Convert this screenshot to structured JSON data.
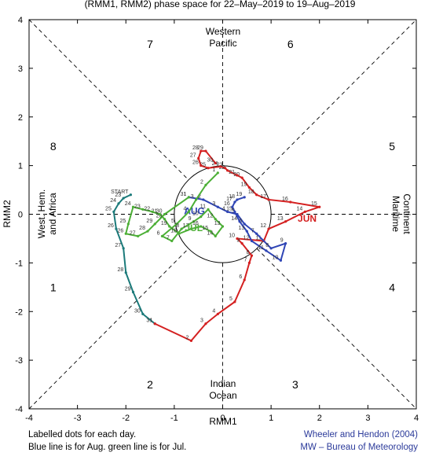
{
  "chart_data": {
    "type": "line",
    "title": "(RMM1, RMM2) phase space for 22–May–2019 to 19–Aug–2019",
    "xlabel": "RMM1",
    "ylabel": "RMM2",
    "xlim": [
      -4,
      4
    ],
    "ylim": [
      -4,
      4
    ],
    "x_ticks": [
      "-4",
      "-3",
      "-2",
      "-1",
      "0",
      "1",
      "2",
      "3",
      "4"
    ],
    "y_ticks": [
      "-4",
      "-3",
      "-2",
      "-1",
      "0",
      "1",
      "2",
      "3",
      "4"
    ],
    "grid": false,
    "unit_circle_radius": 1,
    "phase_numbers": [
      {
        "label": "1",
        "x": -3.5,
        "y": -1.5
      },
      {
        "label": "2",
        "x": -1.5,
        "y": -3.5
      },
      {
        "label": "3",
        "x": 1.5,
        "y": -3.5
      },
      {
        "label": "4",
        "x": 3.5,
        "y": -1.5
      },
      {
        "label": "5",
        "x": 3.5,
        "y": 1.4
      },
      {
        "label": "6",
        "x": 1.4,
        "y": 3.5
      },
      {
        "label": "7",
        "x": -1.5,
        "y": 3.5
      },
      {
        "label": "8",
        "x": -3.5,
        "y": 1.4
      }
    ],
    "region_labels": {
      "top": [
        "Western",
        "Pacific"
      ],
      "bottom": [
        "Indian",
        "Ocean"
      ],
      "left": [
        "West. Hem.",
        "and Africa"
      ],
      "right": [
        "Maritime",
        "Continent"
      ]
    },
    "series": [
      {
        "color": "#1b7a7a",
        "day_labels": [
          "START",
          "23",
          "24",
          "25",
          "26",
          "27",
          "28",
          "29",
          "30",
          "31"
        ],
        "points": [
          [
            -1.9,
            0.4
          ],
          [
            -2.05,
            0.33
          ],
          [
            -2.15,
            0.22
          ],
          [
            -2.25,
            0.05
          ],
          [
            -2.2,
            -0.3
          ],
          [
            -2.05,
            -0.7
          ],
          [
            -2.0,
            -1.2
          ],
          [
            -1.85,
            -1.6
          ],
          [
            -1.65,
            -2.05
          ],
          [
            -1.4,
            -2.25
          ]
        ]
      },
      {
        "color": "#d42020",
        "label": "JUN",
        "day_labels": [
          "1",
          "2",
          "3",
          "4",
          "5",
          "6",
          "7",
          "8",
          "9",
          "10",
          "11",
          "12",
          "13",
          "14",
          "15",
          "16",
          "17",
          "18",
          "19",
          "20",
          "21",
          "22",
          "23",
          "24",
          "25",
          "26",
          "27",
          "28",
          "29",
          "30"
        ],
        "points": [
          [
            -1.4,
            -2.25
          ],
          [
            -0.65,
            -2.6
          ],
          [
            -0.35,
            -2.25
          ],
          [
            -0.1,
            -2.05
          ],
          [
            0.25,
            -1.8
          ],
          [
            0.45,
            -1.35
          ],
          [
            0.55,
            -1.0
          ],
          [
            0.6,
            -0.85
          ],
          [
            0.4,
            -0.6
          ],
          [
            0.3,
            -0.5
          ],
          [
            0.85,
            -0.55
          ],
          [
            0.95,
            -0.3
          ],
          [
            1.3,
            -0.15
          ],
          [
            1.7,
            0.05
          ],
          [
            2.0,
            0.15
          ],
          [
            1.4,
            0.25
          ],
          [
            0.95,
            0.3
          ],
          [
            0.7,
            0.4
          ],
          [
            0.55,
            0.55
          ],
          [
            0.4,
            0.75
          ],
          [
            0.3,
            0.8
          ],
          [
            0.1,
            0.9
          ],
          [
            0.05,
            0.95
          ],
          [
            -0.05,
            0.98
          ],
          [
            -0.3,
            0.95
          ],
          [
            -0.45,
            1.0
          ],
          [
            -0.5,
            1.15
          ],
          [
            -0.45,
            1.3
          ],
          [
            -0.35,
            1.3
          ],
          [
            -0.15,
            1.05
          ]
        ]
      },
      {
        "color": "#2f45b5",
        "label": "AUG",
        "day_labels": [
          "1",
          "2",
          "3",
          "4",
          "5",
          "6",
          "7",
          "8",
          "9",
          "10",
          "11",
          "12",
          "13",
          "14",
          "15",
          "16",
          "17",
          "18",
          "19"
        ],
        "points": [
          [
            -0.7,
            0.35
          ],
          [
            -0.4,
            0.3
          ],
          [
            -0.1,
            0.15
          ],
          [
            0.1,
            0.05
          ],
          [
            0.3,
            0.0
          ],
          [
            0.45,
            -0.2
          ],
          [
            0.7,
            -0.4
          ],
          [
            1.0,
            -0.7
          ],
          [
            1.3,
            -0.6
          ],
          [
            1.2,
            -0.95
          ],
          [
            0.9,
            -0.75
          ],
          [
            0.6,
            -0.55
          ],
          [
            0.5,
            -0.35
          ],
          [
            0.35,
            -0.15
          ],
          [
            0.25,
            0.05
          ],
          [
            0.2,
            0.15
          ],
          [
            0.25,
            0.25
          ],
          [
            0.3,
            0.3
          ],
          [
            0.45,
            0.35
          ]
        ]
      },
      {
        "color": "#4caf36",
        "label": "JUL",
        "day_labels": [
          "1",
          "2",
          "3",
          "4",
          "5",
          "6",
          "7",
          "8",
          "9",
          "10",
          "11",
          "12",
          "13",
          "14",
          "15",
          "16",
          "17",
          "18",
          "19",
          "20",
          "21",
          "22",
          "23",
          "24",
          "25",
          "26",
          "27",
          "28",
          "29",
          "30",
          "31"
        ],
        "points": [
          [
            -0.1,
            0.85
          ],
          [
            -0.35,
            0.6
          ],
          [
            -0.55,
            0.3
          ],
          [
            -0.7,
            0.05
          ],
          [
            -0.95,
            -0.2
          ],
          [
            -1.25,
            -0.45
          ],
          [
            -1.05,
            -0.55
          ],
          [
            -0.85,
            -0.3
          ],
          [
            -0.6,
            -0.15
          ],
          [
            -0.45,
            -0.05
          ],
          [
            -0.3,
            0.1
          ],
          [
            -0.15,
            -0.1
          ],
          [
            0.0,
            -0.25
          ],
          [
            -0.15,
            -0.45
          ],
          [
            -0.25,
            -0.35
          ],
          [
            -0.45,
            -0.25
          ],
          [
            -0.65,
            -0.3
          ],
          [
            -0.9,
            -0.4
          ],
          [
            -1.1,
            -0.25
          ],
          [
            -1.2,
            -0.1
          ],
          [
            -1.3,
            0.0
          ],
          [
            -1.45,
            0.05
          ],
          [
            -1.65,
            0.1
          ],
          [
            -1.85,
            0.15
          ],
          [
            -1.95,
            -0.2
          ],
          [
            -2.0,
            -0.4
          ],
          [
            -1.75,
            -0.45
          ],
          [
            -1.55,
            -0.35
          ],
          [
            -1.4,
            -0.2
          ],
          [
            -1.2,
            0.0
          ],
          [
            -0.7,
            0.35
          ]
        ]
      }
    ],
    "notes": [
      "Labelled dots for each day.",
      "Blue line is for Aug. green line is for Jul."
    ],
    "credits": [
      "Wheeler and Hendon (2004)",
      "MW – Bureau of Meteorology"
    ]
  }
}
